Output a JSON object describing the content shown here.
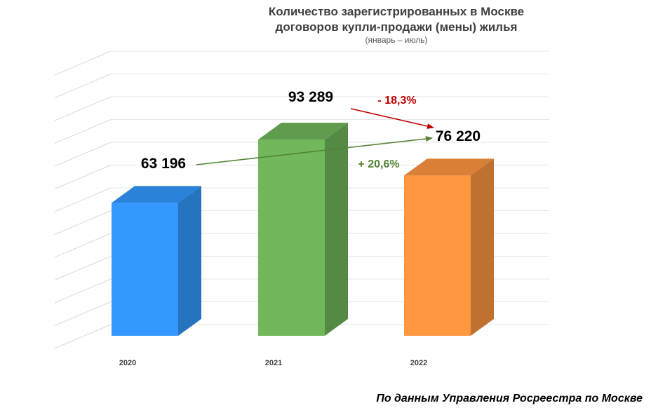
{
  "chart_data": {
    "type": "bar",
    "title_lines": [
      "Количество зарегистрированных в Москве",
      "договоров купли-продажи (мены) жилья"
    ],
    "subtitle": "(январь – июль)",
    "categories": [
      "2020",
      "2021",
      "2022"
    ],
    "values": [
      63196,
      93289,
      76220
    ],
    "value_labels": [
      "63 196",
      "93 289",
      "76 220"
    ],
    "colors": [
      "#3399ff",
      "#70b85a",
      "#ff9640"
    ],
    "ylim": [
      0,
      120000
    ],
    "grid": true,
    "annotations": [
      {
        "text": "- 18,3%",
        "from": "2021",
        "to": "2022",
        "color": "#c00000"
      },
      {
        "text": "+ 20,6%",
        "from": "2020",
        "to": "2022",
        "color": "#548235"
      }
    ]
  },
  "source_note": "По данным Управления Росреестра по Москве"
}
